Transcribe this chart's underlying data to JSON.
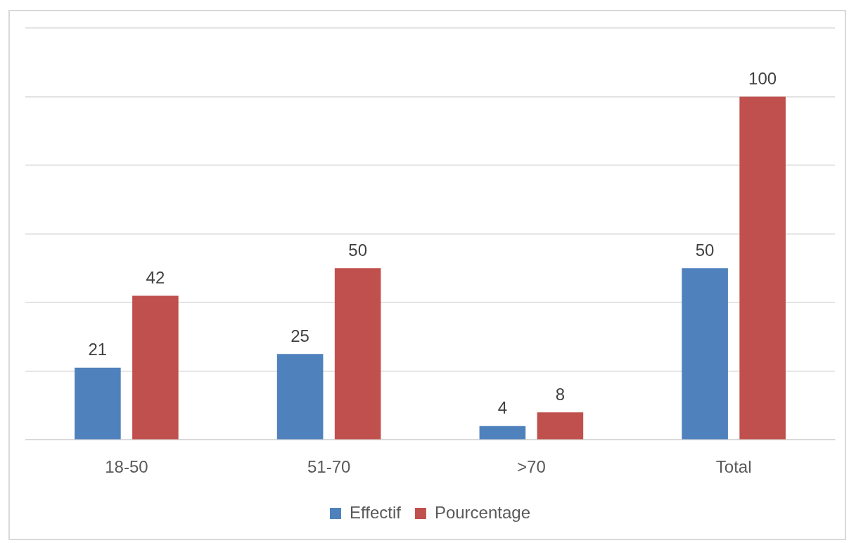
{
  "chart_data": {
    "type": "bar",
    "categories": [
      "18-50",
      "51-70",
      ">70",
      "Total"
    ],
    "series": [
      {
        "name": "Effectif",
        "color": "#4f81bd",
        "values": [
          21,
          25,
          4,
          50
        ]
      },
      {
        "name": "Pourcentage",
        "color": "#c0504d",
        "values": [
          42,
          50,
          8,
          100
        ]
      }
    ],
    "ylim": [
      0,
      120
    ],
    "yticks": [
      {
        "value": 0,
        "label": null
      },
      {
        "value": 20,
        "label": null
      },
      {
        "value": 40,
        "label": null
      },
      {
        "value": 60,
        "label": null
      },
      {
        "value": 80,
        "label": null
      },
      {
        "value": 100,
        "label": null
      },
      {
        "value": 120,
        "label": null
      }
    ],
    "grid": "y",
    "legend": "bottom",
    "tick_labels": "x",
    "data_labels": true
  }
}
